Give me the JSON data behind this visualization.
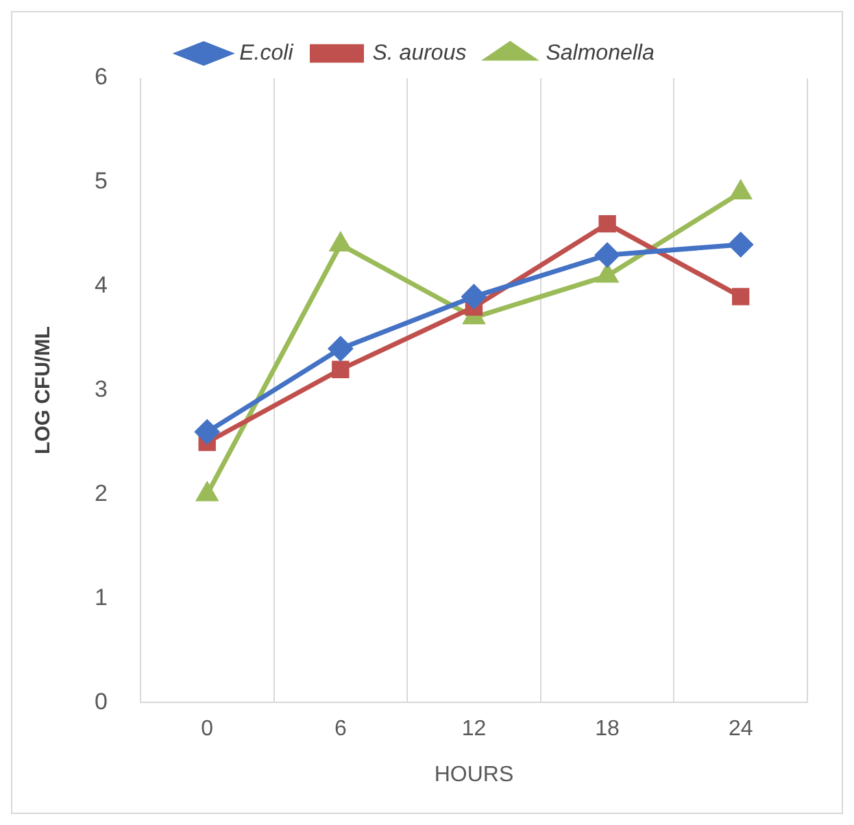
{
  "chart_data": {
    "type": "line",
    "xlabel": "HOURS",
    "ylabel": "LOG CFU/ML",
    "categories": [
      "0",
      "6",
      "12",
      "18",
      "24"
    ],
    "series": [
      {
        "name": "E.coli",
        "color": "#4472c4",
        "marker": "diamond",
        "values": [
          2.6,
          3.4,
          3.9,
          4.3,
          4.4
        ]
      },
      {
        "name": "S. aurous",
        "color": "#c0504d",
        "marker": "square",
        "values": [
          2.5,
          3.2,
          3.8,
          4.6,
          3.9
        ]
      },
      {
        "name": "Salmonella",
        "color": "#9bbb59",
        "marker": "triangle",
        "values": [
          2.0,
          4.4,
          3.7,
          4.1,
          4.9
        ]
      }
    ],
    "ylim": [
      0,
      6
    ],
    "yticks": [
      0,
      1,
      2,
      3,
      4,
      5,
      6
    ],
    "grid": "x",
    "legend": "top",
    "line_style": "solid"
  }
}
